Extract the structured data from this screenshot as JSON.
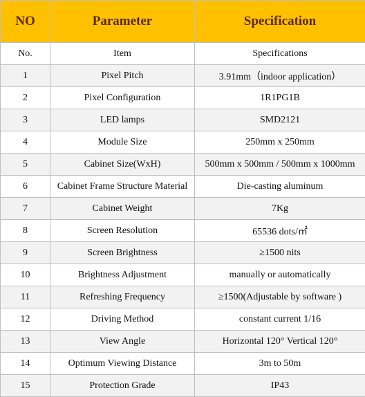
{
  "table": {
    "header": [
      "NO",
      "Parameter",
      "Specification"
    ],
    "rows": [
      [
        "No.",
        "Item",
        "Specifications"
      ],
      [
        "1",
        "Pixel Pitch",
        "3.91mm（indoor application）"
      ],
      [
        "2",
        "Pixel Configuration",
        "1R1PG1B"
      ],
      [
        "3",
        "LED lamps",
        "SMD2121"
      ],
      [
        "4",
        "Module Size",
        "250mm x 250mm"
      ],
      [
        "5",
        "Cabinet Size(WxH)",
        "500mm x 500mm / 500mm x 1000mm"
      ],
      [
        "6",
        "Cabinet Frame Structure Material",
        "Die-casting aluminum"
      ],
      [
        "7",
        "Cabinet Weight",
        "7Kg"
      ],
      [
        "8",
        "Screen Resolution",
        "65536  dots/㎡"
      ],
      [
        "9",
        "Screen Brightness",
        "≥1500 nits"
      ],
      [
        "10",
        "Brightness Adjustment",
        "manually or automatically"
      ],
      [
        "11",
        "Refreshing Frequency",
        "≥1500(Adjustable by software )"
      ],
      [
        "12",
        "Driving Method",
        "constant current    1/16"
      ],
      [
        "13",
        "View Angle",
        "Horizontal 120° Vertical 120°"
      ],
      [
        "14",
        "Optimum Viewing Distance",
        "3m to 50m"
      ],
      [
        "15",
        "Protection Grade",
        "IP43"
      ]
    ]
  }
}
